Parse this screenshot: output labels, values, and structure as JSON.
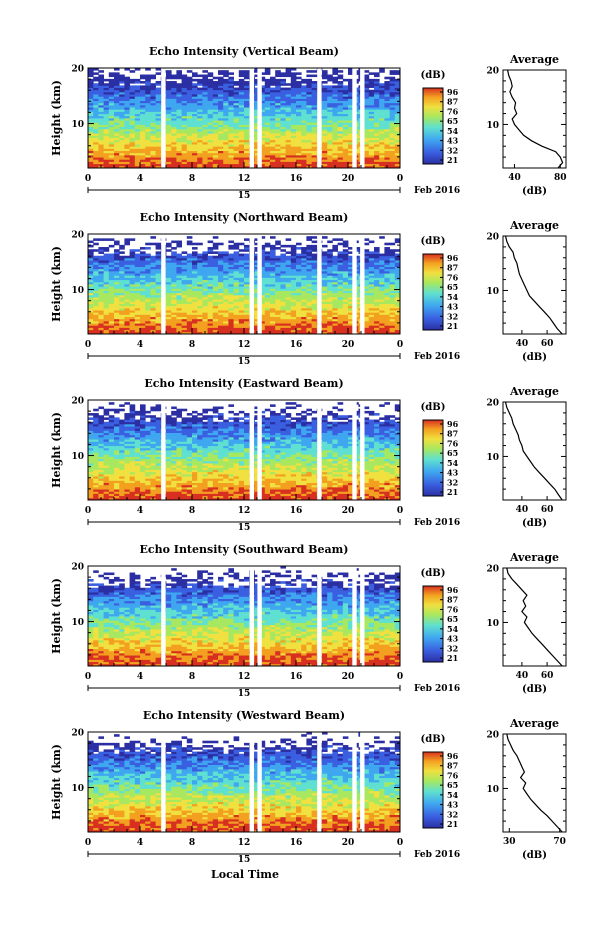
{
  "chart_data": [
    {
      "type": "heatmap",
      "title": "Echo Intensity (Vertical Beam)",
      "ylabel": "Height (km)",
      "ylim": [
        2,
        20
      ],
      "xlim": [
        0,
        24
      ],
      "x_ticks": [
        "0",
        "4",
        "8",
        "12",
        "16",
        "20",
        "0"
      ],
      "y_ticks": [
        "10",
        "20"
      ],
      "date_marker": "15",
      "date_label": "Feb 2016",
      "colorbar": {
        "unit": "(dB)",
        "ticks": [
          "96",
          "87",
          "76",
          "65",
          "54",
          "43",
          "32",
          "21"
        ]
      },
      "profile": {
        "title": "Average",
        "xlabel": "(dB)",
        "x_ticks": [
          "40",
          "80"
        ],
        "xlim": [
          30,
          85
        ],
        "y_ticks": [
          "10",
          "20"
        ],
        "heights": [
          2,
          3,
          4,
          5,
          6,
          7,
          8,
          9,
          10,
          11,
          12,
          13,
          14,
          15,
          16,
          17,
          18,
          19,
          20
        ],
        "values": [
          78,
          82,
          80,
          76,
          64,
          55,
          48,
          44,
          40,
          38,
          42,
          40,
          41,
          38,
          36,
          38,
          37,
          35,
          34
        ]
      },
      "gaps_hours": [
        5.8,
        12.6,
        13.2,
        17.8,
        20.5,
        21.1
      ]
    },
    {
      "type": "heatmap",
      "title": "Echo Intensity (Northward Beam)",
      "ylabel": "Height (km)",
      "ylim": [
        2,
        20
      ],
      "xlim": [
        0,
        24
      ],
      "x_ticks": [
        "0",
        "4",
        "8",
        "12",
        "16",
        "20",
        "0"
      ],
      "y_ticks": [
        "10",
        "20"
      ],
      "date_marker": "15",
      "date_label": "Feb 2016",
      "colorbar": {
        "unit": "(dB)",
        "ticks": [
          "96",
          "87",
          "76",
          "65",
          "54",
          "43",
          "32",
          "21"
        ]
      },
      "profile": {
        "title": "Average",
        "xlabel": "(dB)",
        "x_ticks": [
          "40",
          "60"
        ],
        "xlim": [
          25,
          75
        ],
        "y_ticks": [
          "10",
          "20"
        ],
        "heights": [
          2,
          3,
          4,
          5,
          6,
          7,
          8,
          9,
          10,
          11,
          12,
          13,
          14,
          15,
          16,
          17,
          18,
          19,
          20
        ],
        "values": [
          72,
          68,
          65,
          62,
          58,
          54,
          50,
          46,
          44,
          42,
          40,
          38,
          37,
          36,
          34,
          33,
          30,
          28,
          27
        ]
      },
      "gaps_hours": [
        5.8,
        12.6,
        13.2,
        17.8,
        20.5,
        21.1
      ]
    },
    {
      "type": "heatmap",
      "title": "Echo Intensity (Eastward Beam)",
      "ylabel": "Height (km)",
      "ylim": [
        2,
        20
      ],
      "xlim": [
        0,
        24
      ],
      "x_ticks": [
        "0",
        "4",
        "8",
        "12",
        "16",
        "20",
        "0"
      ],
      "y_ticks": [
        "10",
        "20"
      ],
      "date_marker": "15",
      "date_label": "Feb 2016",
      "colorbar": {
        "unit": "(dB)",
        "ticks": [
          "96",
          "87",
          "76",
          "65",
          "54",
          "43",
          "32",
          "21"
        ]
      },
      "profile": {
        "title": "Average",
        "xlabel": "(dB)",
        "x_ticks": [
          "40",
          "60"
        ],
        "xlim": [
          25,
          75
        ],
        "y_ticks": [
          "10",
          "20"
        ],
        "heights": [
          2,
          3,
          4,
          5,
          6,
          7,
          8,
          9,
          10,
          11,
          12,
          13,
          14,
          15,
          16,
          17,
          18,
          19,
          20
        ],
        "values": [
          72,
          69,
          66,
          62,
          58,
          54,
          50,
          47,
          44,
          41,
          40,
          38,
          37,
          35,
          33,
          32,
          30,
          28,
          27
        ]
      },
      "gaps_hours": [
        5.8,
        12.6,
        13.2,
        17.8,
        20.5,
        21.1
      ]
    },
    {
      "type": "heatmap",
      "title": "Echo Intensity (Southward Beam)",
      "ylabel": "Height (km)",
      "ylim": [
        2,
        20
      ],
      "xlim": [
        0,
        24
      ],
      "x_ticks": [
        "0",
        "4",
        "8",
        "12",
        "16",
        "20",
        "0"
      ],
      "y_ticks": [
        "10",
        "20"
      ],
      "date_marker": "15",
      "date_label": "Feb 2016",
      "colorbar": {
        "unit": "(dB)",
        "ticks": [
          "96",
          "87",
          "76",
          "65",
          "54",
          "43",
          "32",
          "21"
        ]
      },
      "profile": {
        "title": "Average",
        "xlabel": "(dB)",
        "x_ticks": [
          "40",
          "60"
        ],
        "xlim": [
          25,
          75
        ],
        "y_ticks": [
          "10",
          "20"
        ],
        "heights": [
          2,
          3,
          4,
          5,
          6,
          7,
          8,
          9,
          10,
          11,
          12,
          13,
          14,
          15,
          16,
          17,
          18,
          19,
          20
        ],
        "values": [
          72,
          68,
          64,
          60,
          56,
          52,
          48,
          45,
          42,
          44,
          40,
          43,
          41,
          44,
          40,
          36,
          32,
          29,
          28
        ]
      },
      "gaps_hours": [
        5.8,
        12.6,
        13.2,
        17.8,
        20.5,
        21.1
      ]
    },
    {
      "type": "heatmap",
      "title": "Echo Intensity (Westward Beam)",
      "ylabel": "Height (km)",
      "ylim": [
        2,
        20
      ],
      "xlim": [
        0,
        24
      ],
      "x_ticks": [
        "0",
        "4",
        "8",
        "12",
        "16",
        "20",
        "0"
      ],
      "y_ticks": [
        "10",
        "20"
      ],
      "date_marker": "15",
      "date_label": "Feb 2016",
      "colorbar": {
        "unit": "(dB)",
        "ticks": [
          "96",
          "87",
          "76",
          "65",
          "54",
          "43",
          "32",
          "21"
        ]
      },
      "profile": {
        "title": "Average",
        "xlabel": "(dB)",
        "x_ticks": [
          "30",
          "70"
        ],
        "xlim": [
          25,
          75
        ],
        "y_ticks": [
          "10",
          "20"
        ],
        "heights": [
          2,
          3,
          4,
          5,
          6,
          7,
          8,
          9,
          10,
          11,
          12,
          13,
          14,
          15,
          16,
          17,
          18,
          19,
          20
        ],
        "values": [
          72,
          68,
          64,
          60,
          55,
          51,
          47,
          44,
          41,
          43,
          39,
          42,
          40,
          38,
          36,
          33,
          31,
          29,
          28
        ]
      },
      "gaps_hours": [
        5.8,
        12.6,
        13.2,
        17.8,
        20.5,
        21.1
      ]
    }
  ],
  "xlabel": "Local Time",
  "colors": {
    "scale": [
      "#2b2fa3",
      "#3a5fe0",
      "#3fa7f0",
      "#5fe0d0",
      "#a8e860",
      "#f0e040",
      "#f3a020",
      "#d83020"
    ]
  }
}
